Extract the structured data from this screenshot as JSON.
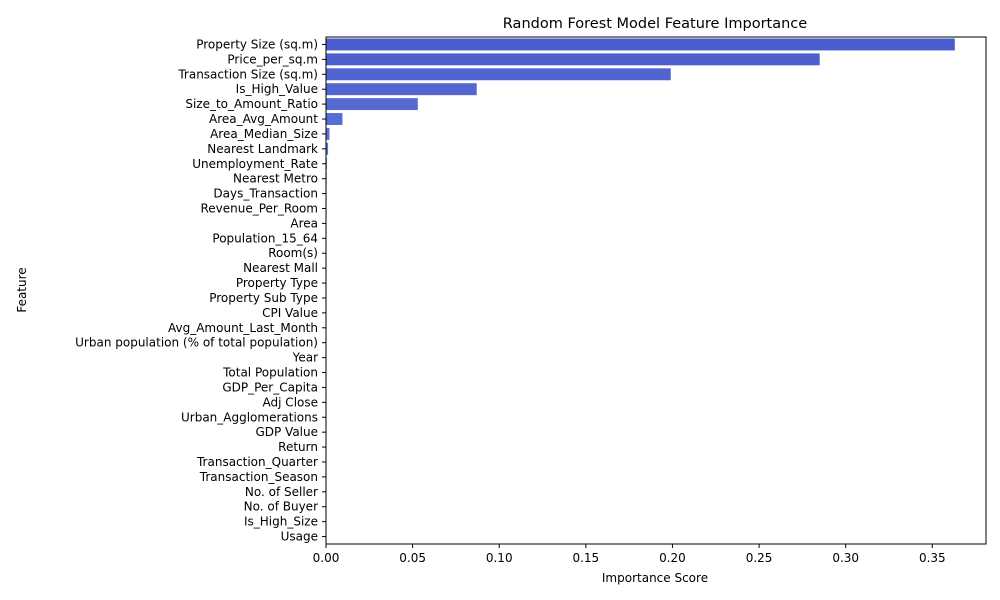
{
  "chart_data": {
    "type": "bar",
    "orientation": "horizontal",
    "title": "Random Forest Model Feature Importance",
    "xlabel": "Importance Score",
    "ylabel": "Feature",
    "xlim": [
      0,
      0.381
    ],
    "xticks": [
      "0.00",
      "0.05",
      "0.10",
      "0.15",
      "0.20",
      "0.25",
      "0.30",
      "0.35"
    ],
    "grid": false,
    "categories": [
      "Property Size (sq.m)",
      "Price_per_sq.m",
      "Transaction Size (sq.m)",
      "Is_High_Value",
      "Size_to_Amount_Ratio",
      "Area_Avg_Amount",
      "Area_Median_Size",
      "Nearest Landmark",
      "Unemployment_Rate",
      "Nearest Metro",
      "Days_Transaction",
      "Revenue_Per_Room",
      "Area",
      "Population_15_64",
      "Room(s)",
      "Nearest Mall",
      "Property Type",
      "Property Sub Type",
      "CPI Value",
      "Avg_Amount_Last_Month",
      "Urban population (% of total population)",
      "Year",
      "Total Population",
      "GDP_Per_Capita",
      "Adj Close",
      "Urban_Agglomerations",
      "GDP Value",
      "Return",
      "Transaction_Quarter",
      "Transaction_Season",
      "No. of Seller",
      "No. of Buyer",
      "Is_High_Size",
      "Usage"
    ],
    "values": [
      0.363,
      0.285,
      0.199,
      0.087,
      0.053,
      0.0095,
      0.002,
      0.0012,
      0.0005,
      0.0004,
      0.0003,
      0.0003,
      0.0002,
      0.0002,
      0.0002,
      0.0001,
      0.0001,
      0.0001,
      0.0001,
      0.0001,
      0.0001,
      0.0001,
      0.0001,
      0.0001,
      0.0001,
      0.0001,
      0.0001,
      0.0001,
      0.0001,
      0.0001,
      0.0001,
      0.0001,
      0.0001,
      0.0001
    ],
    "colors": {
      "palette_start": "#4a5dcc",
      "palette_end": "#a9c3f8",
      "axis": "#000000"
    }
  }
}
